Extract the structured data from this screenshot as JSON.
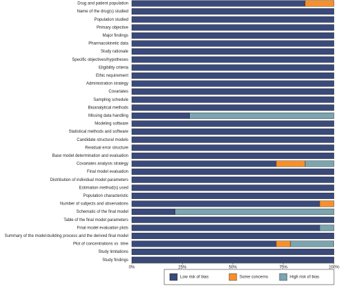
{
  "chart_data": {
    "type": "stacked-bar-horizontal",
    "categories": [
      "Drug and patient population",
      "Name of the drug(s) studied",
      "Population studied",
      "Primary objective",
      "Major findings",
      "Pharmacokinetic data",
      "Study rationale",
      "Specific objectives/hypotheses",
      "Eligibility criteria",
      "Ethic requirement",
      "Administration strategy",
      "Covariates",
      "Sampling schedule",
      "Bioanalytical methods",
      "Missing data handling",
      "Modeling software",
      "Statistical methods and software",
      "Candidate structural models",
      "Residual error structure",
      "Base model determination and evaluation",
      "Covariates analysis strategy",
      "Final model evaluation",
      "Distribution of individual model parameters",
      "Estimation method(s) used",
      "Population characteristic",
      "Number of subjects and observations",
      "Schematic of the final model",
      "Table of the final model parameters",
      "Final model evaluation plots",
      "Summary of the model-building process and the derived final model",
      "Plot of concentrations vs  time",
      "Study limitations",
      "Study findings"
    ],
    "series": [
      {
        "name": "Low risk of bias",
        "color": "#3a4a7b",
        "values": [
          85.7,
          100,
          100,
          100,
          100,
          100,
          100,
          100,
          100,
          100,
          100,
          100,
          100,
          100,
          28.6,
          100,
          100,
          100,
          100,
          100,
          71.4,
          100,
          100,
          100,
          100,
          92.9,
          21.4,
          100,
          92.9,
          100,
          71.4,
          100,
          100
        ]
      },
      {
        "name": "Some concerns",
        "color": "#f7902b",
        "values": [
          14.3,
          0,
          0,
          0,
          0,
          0,
          0,
          0,
          0,
          0,
          0,
          0,
          0,
          0,
          0,
          0,
          0,
          0,
          0,
          0,
          14.3,
          0,
          0,
          0,
          0,
          7.1,
          0,
          0,
          0,
          0,
          7.1,
          0,
          0
        ]
      },
      {
        "name": "High risk of bias",
        "color": "#7ba5b0",
        "values": [
          0,
          0,
          0,
          0,
          0,
          0,
          0,
          0,
          0,
          0,
          0,
          0,
          0,
          0,
          71.4,
          0,
          0,
          0,
          0,
          0,
          14.3,
          0,
          0,
          0,
          0,
          0,
          78.6,
          0,
          7.1,
          0,
          21.4,
          0,
          0
        ]
      }
    ],
    "xlim": [
      0,
      100
    ],
    "xticks": [
      {
        "value": 0,
        "label": "0%"
      },
      {
        "value": 25,
        "label": "25%"
      },
      {
        "value": 50,
        "label": "50%"
      },
      {
        "value": 75,
        "label": "75%"
      },
      {
        "value": 100,
        "label": "100%"
      }
    ],
    "legend": "bottom-right"
  }
}
